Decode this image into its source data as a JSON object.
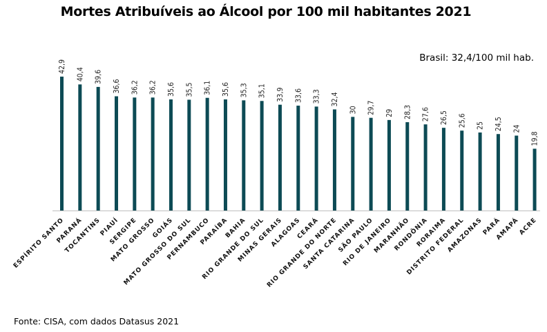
{
  "title": "Mortes Atribuíveis ao Álcool por 100 mil habitantes 2021",
  "note": "Brasil: 32,4/100 mil hab.",
  "source": "Fonte: CISA, com dados Datasus 2021",
  "colors": {
    "bar": "#0d4b55",
    "axis": "#bfbfbf"
  },
  "chart_data": {
    "type": "bar",
    "title": "Mortes Atribuíveis ao Álcool por 100 mil habitantes 2021",
    "xlabel": "",
    "ylabel": "",
    "ylim": [
      0,
      42.9
    ],
    "grid": false,
    "categories": [
      "ESPÍRITO SANTO",
      "PARANÁ",
      "TOCANTINS",
      "PIAUÍ",
      "SERGIPE",
      "MATO GROSSO",
      "GOIÁS",
      "MATO GROSSO DO SUL",
      "PERNAMBUCO",
      "PARAÍBA",
      "BAHIA",
      "RIO GRANDE DO SUL",
      "MINAS GERAIS",
      "ALAGOAS",
      "CEARÁ",
      "RIO GRANDE DO NORTE",
      "SANTA CATARINA",
      "SÃO PAULO",
      "RIO DE JANEIRO",
      "MARANHÃO",
      "RONDÔNIA",
      "RORAIMA",
      "DISTRITO FEDERAL",
      "AMAZONAS",
      "PARÁ",
      "AMAPÁ",
      "ACRE"
    ],
    "values": [
      42.9,
      40.4,
      39.6,
      36.6,
      36.2,
      36.2,
      35.6,
      35.5,
      36.1,
      35.6,
      35.3,
      35.1,
      33.9,
      33.6,
      33.3,
      32.4,
      30,
      29.7,
      29,
      28.3,
      27.6,
      26.5,
      25.6,
      25,
      24.5,
      24,
      19.8
    ],
    "value_labels": [
      "42,9",
      "40,4",
      "39,6",
      "36,6",
      "36,2",
      "36,2",
      "35,6",
      "35,5",
      "36,1",
      "35,6",
      "35,3",
      "35,1",
      "33,9",
      "33,6",
      "33,3",
      "32,4",
      "30",
      "29,7",
      "29",
      "28,3",
      "27,6",
      "26,5",
      "25,6",
      "25",
      "24,5",
      "24",
      "19,8"
    ]
  }
}
